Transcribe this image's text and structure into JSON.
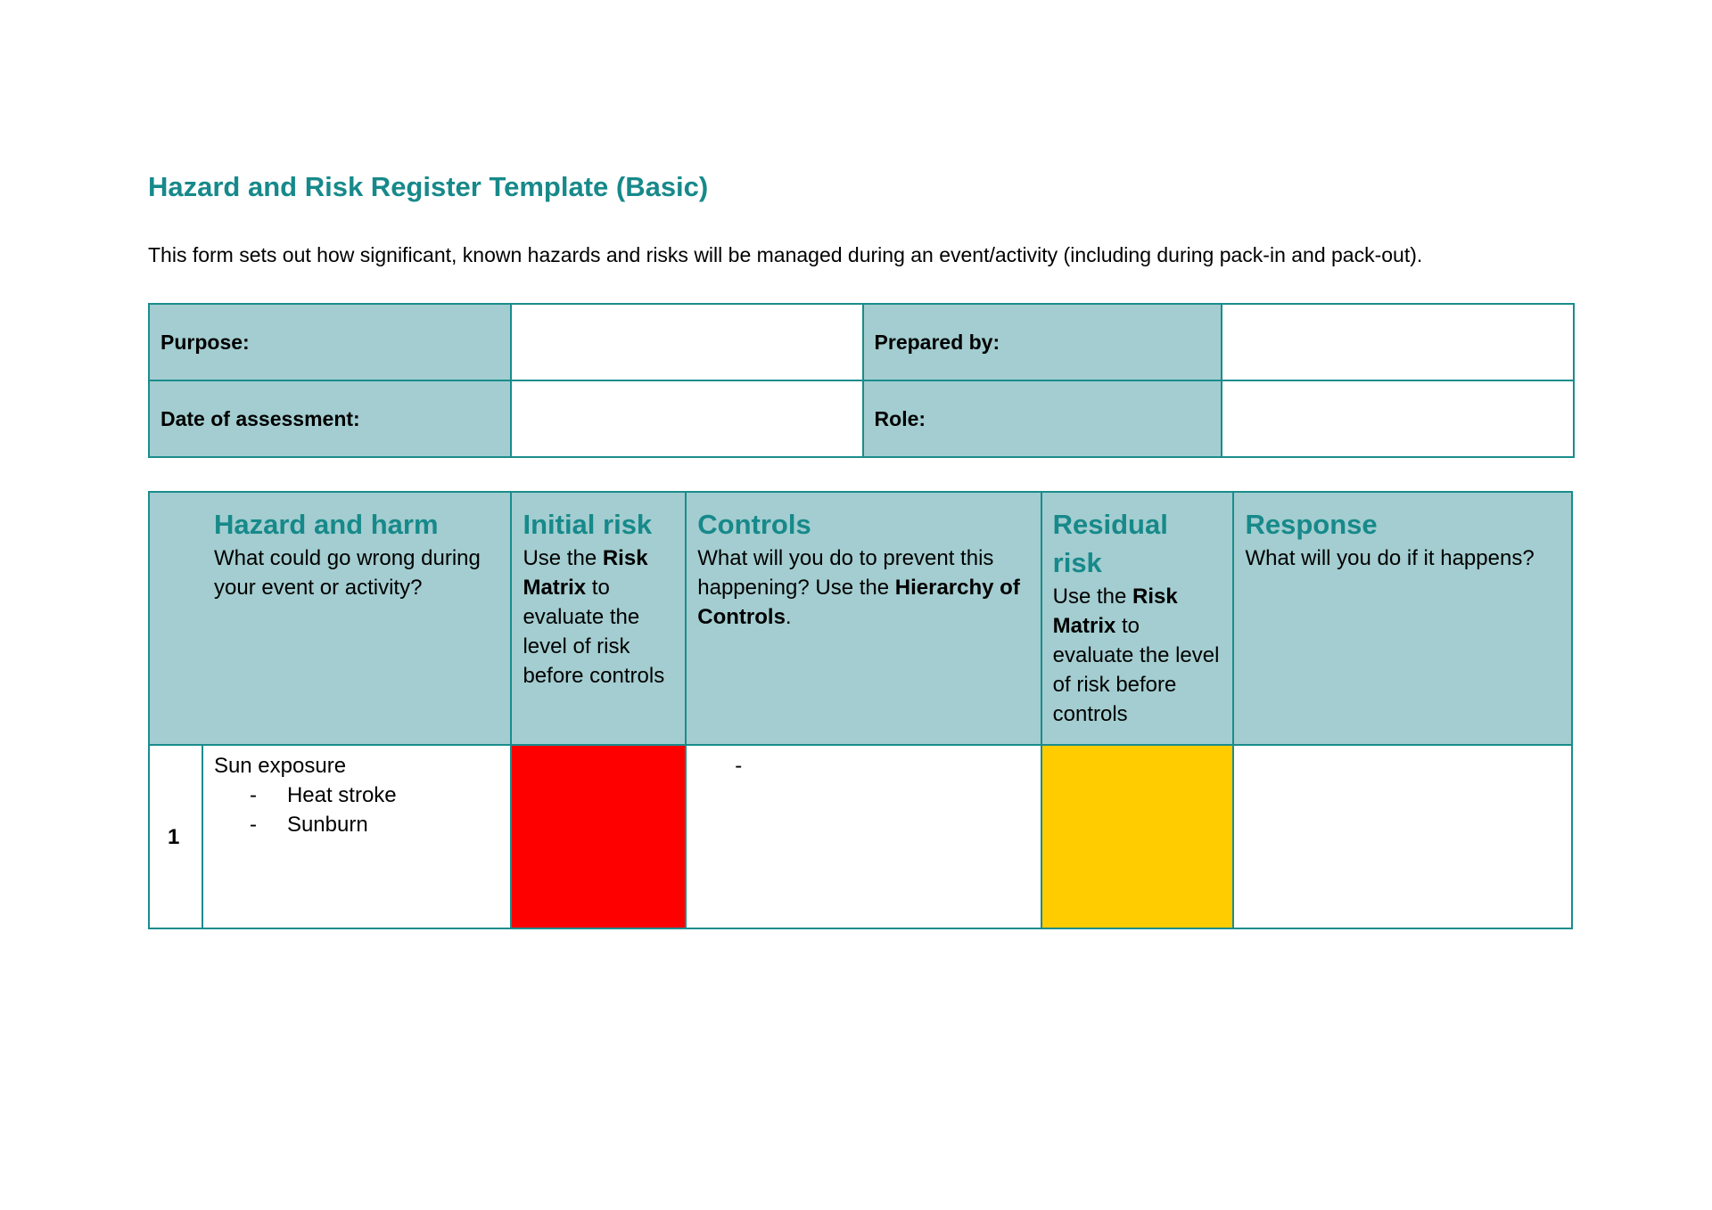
{
  "title": "Hazard and Risk Register Template (Basic)",
  "description": "This form sets out how significant, known hazards and risks will be managed during an event/activity (including during pack-in and pack-out).",
  "info": {
    "purpose_label": "Purpose:",
    "prepared_by_label": "Prepared by:",
    "date_label": "Date of assessment:",
    "role_label": "Role:",
    "purpose": "",
    "prepared_by": "",
    "date": "",
    "role": ""
  },
  "columns": [
    {
      "title": "Hazard and harm",
      "text": "What could go wrong during your event or activity?"
    },
    {
      "title": "Initial risk",
      "pre": "Use the ",
      "bold": "Risk Matrix",
      "post": " to evaluate the level of risk before controls"
    },
    {
      "title": "Controls",
      "pre": "What will you do to prevent this happening? Use the ",
      "bold": "Hierarchy of Controls",
      "post": "."
    },
    {
      "title": "Residual risk",
      "pre": "Use the ",
      "bold": "Risk Matrix",
      "post": " to evaluate the level of risk before controls"
    },
    {
      "title": "Response",
      "text": "What will you do if it happens?"
    }
  ],
  "rows": [
    {
      "number": "1",
      "hazard": "Sun exposure",
      "harms": [
        "Heat stroke",
        "Sunburn"
      ],
      "initial_risk_color": "#ff0000",
      "controls": "-",
      "residual_risk_color": "#ffcc00",
      "response": ""
    }
  ]
}
